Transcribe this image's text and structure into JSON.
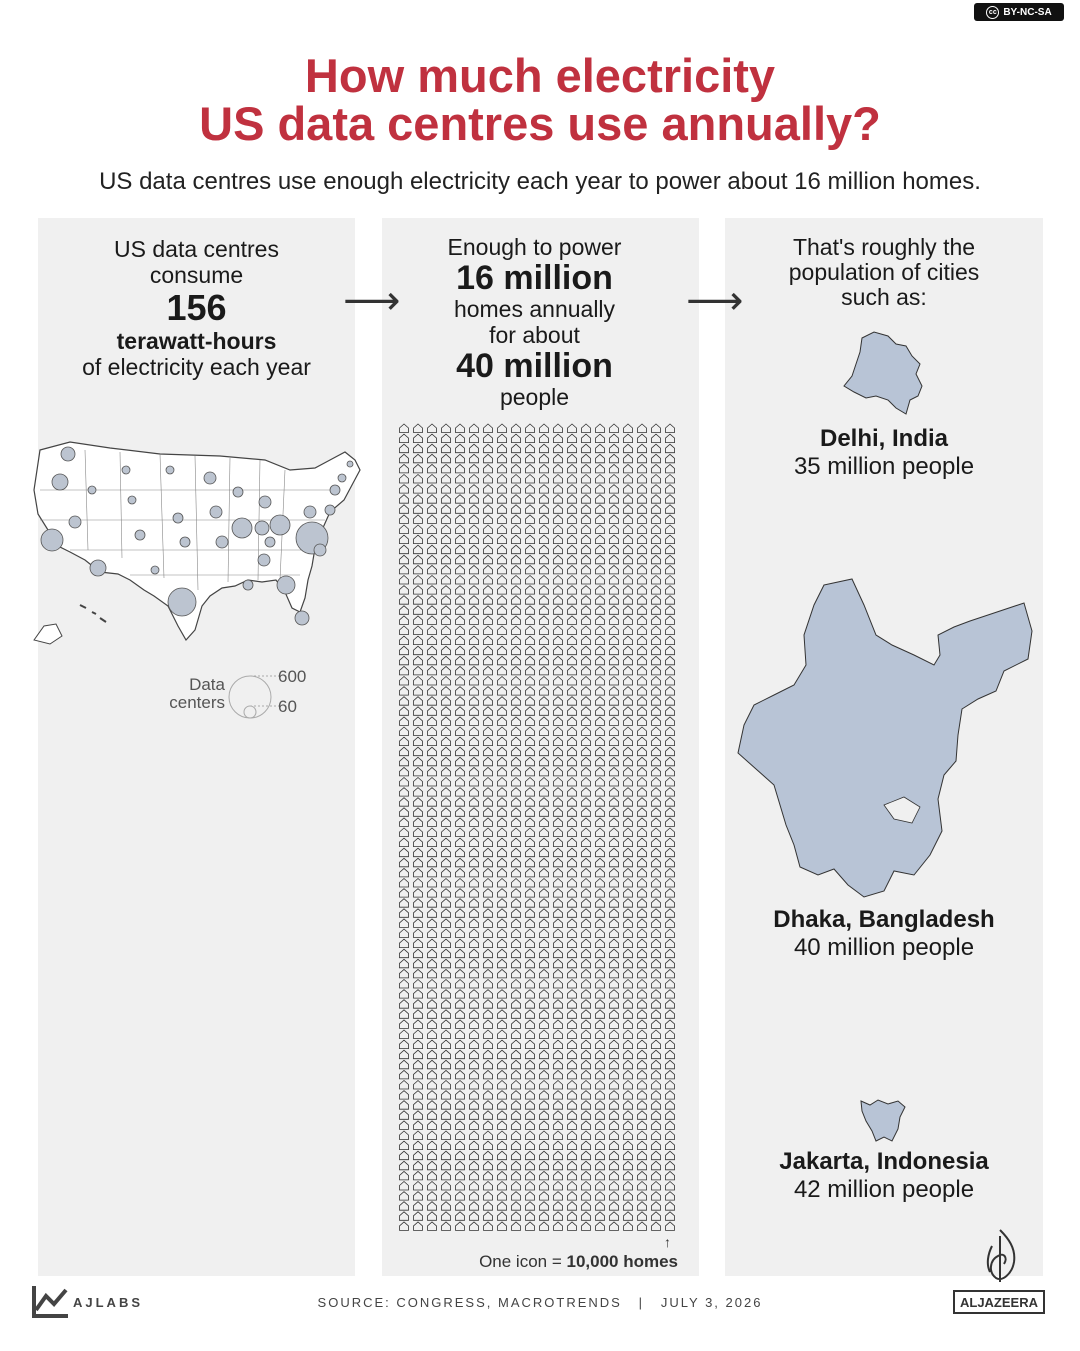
{
  "license": "BY-NC-SA",
  "title_line1": "How much electricity",
  "title_line2": "US data centres use annually?",
  "subtitle": "US data centres use enough electricity each year to power about 16 million homes.",
  "panel1": {
    "line1": "US data centres",
    "line2": "consume",
    "value": "156",
    "unit": "terawatt-hours",
    "line3": "of electricity each year",
    "legend_label_1": "Data",
    "legend_label_2": "centers",
    "legend_big": "600",
    "legend_small": "60"
  },
  "panel2": {
    "line1": "Enough to power",
    "homes": "16 million",
    "line2": "homes annually",
    "line3": "for about",
    "people": "40 million",
    "line4": "people",
    "icon_note_prefix": "One icon = ",
    "icon_note_value": "10,000 homes",
    "homes_count": 16000000,
    "homes_per_icon": 10000
  },
  "panel3": {
    "line1": "That's roughly the",
    "line2": "population of cities",
    "line3": "such as:",
    "cities": [
      {
        "name": "Delhi, India",
        "population": "35 million people"
      },
      {
        "name": "Dhaka, Bangladesh",
        "population": "40 million people"
      },
      {
        "name": "Jakarta, Indonesia",
        "population": "42 million people"
      }
    ]
  },
  "footer": {
    "ajlabs": "AJLABS",
    "source": "SOURCE: CONGRESS, MACROTRENDS   |   JULY 3, 2026",
    "brand": "ALJAZEERA"
  },
  "colors": {
    "title": "#c0313f",
    "panel": "#f0f0f0",
    "map_fill": "#b8c4d6",
    "bubble": "#bcc4d0"
  }
}
